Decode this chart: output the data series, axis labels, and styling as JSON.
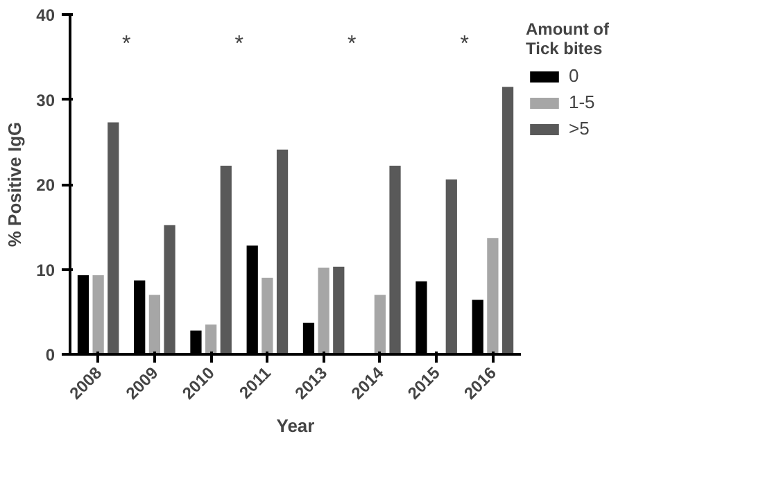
{
  "chart_data": {
    "type": "bar",
    "xlabel": "Year",
    "ylabel": "% Positive IgG",
    "legend_title": "Amount of\nTick bites",
    "categories": [
      "2008",
      "2009",
      "2010",
      "2011",
      "2013",
      "2014",
      "2015",
      "2016"
    ],
    "series": [
      {
        "name": "0",
        "color": "#000000",
        "values": [
          9.3,
          8.7,
          2.8,
          12.8,
          3.7,
          0,
          8.6,
          6.4
        ]
      },
      {
        "name": "1-5",
        "color": "#a6a6a6",
        "values": [
          9.3,
          7.0,
          3.5,
          9.0,
          10.2,
          7.0,
          0,
          13.7
        ]
      },
      {
        "name": ">5",
        "color": "#595959",
        "values": [
          27.3,
          15.2,
          22.2,
          24.1,
          10.3,
          22.2,
          20.6,
          31.5
        ]
      }
    ],
    "ylim": [
      0,
      40
    ],
    "yticks": [
      0,
      10,
      20,
      30,
      40
    ],
    "grid": false,
    "legend": "right",
    "annotations": [
      "*",
      "*",
      "*",
      "*"
    ]
  }
}
